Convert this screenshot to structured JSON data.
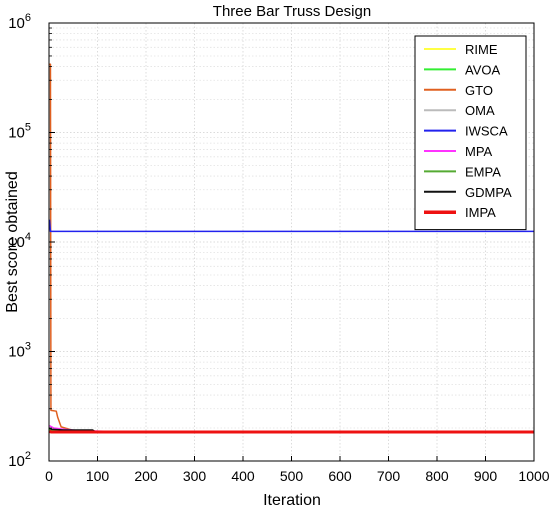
{
  "chart_data": {
    "type": "line",
    "title": "Three Bar Truss Design",
    "xlabel": "Iteration",
    "ylabel": "Best score obtained",
    "xlim": [
      0,
      1000
    ],
    "ylim": [
      100,
      1000000
    ],
    "yscale": "log",
    "grid": true,
    "legend_position": "top-right",
    "x_ticks": [
      "0",
      "100",
      "200",
      "300",
      "400",
      "500",
      "600",
      "700",
      "800",
      "900",
      "1000"
    ],
    "y_ticks": [
      {
        "base": "10",
        "exp": "2",
        "value": 100
      },
      {
        "base": "10",
        "exp": "3",
        "value": 1000
      },
      {
        "base": "10",
        "exp": "4",
        "value": 10000
      },
      {
        "base": "10",
        "exp": "5",
        "value": 100000
      },
      {
        "base": "10",
        "exp": "6",
        "value": 1000000
      }
    ],
    "series": [
      {
        "name": "RIME",
        "color": "#ffff44",
        "points": [
          [
            1,
            190
          ],
          [
            3,
            186
          ],
          [
            10,
            185
          ],
          [
            30,
            184
          ],
          [
            1000,
            184
          ]
        ]
      },
      {
        "name": "AVOA",
        "color": "#33ee33",
        "points": [
          [
            1,
            195
          ],
          [
            5,
            188
          ],
          [
            20,
            185
          ],
          [
            60,
            184
          ],
          [
            1000,
            184
          ]
        ]
      },
      {
        "name": "GTO",
        "color": "#e06020",
        "points": [
          [
            1,
            420000
          ],
          [
            3,
            420000
          ],
          [
            4,
            290
          ],
          [
            15,
            285
          ],
          [
            18,
            250
          ],
          [
            25,
            205
          ],
          [
            50,
            190
          ],
          [
            100,
            186
          ],
          [
            200,
            184
          ],
          [
            1000,
            184
          ]
        ]
      },
      {
        "name": "OMA",
        "color": "#bbbbbb",
        "points": [
          [
            1,
            200
          ],
          [
            10,
            192
          ],
          [
            40,
            188
          ],
          [
            150,
            185
          ],
          [
            1000,
            184
          ]
        ]
      },
      {
        "name": "IWSCA",
        "color": "#2222ee",
        "points": [
          [
            1,
            16000
          ],
          [
            3,
            12500
          ],
          [
            1000,
            12500
          ]
        ]
      },
      {
        "name": "MPA",
        "color": "#ff33ff",
        "points": [
          [
            1,
            210
          ],
          [
            10,
            200
          ],
          [
            30,
            195
          ],
          [
            60,
            190
          ],
          [
            130,
            186
          ],
          [
            1000,
            184
          ]
        ]
      },
      {
        "name": "EMPA",
        "color": "#55aa33",
        "points": [
          [
            1,
            200
          ],
          [
            5,
            190
          ],
          [
            40,
            186
          ],
          [
            1000,
            184
          ]
        ]
      },
      {
        "name": "GDMPA",
        "color": "#111111",
        "points": [
          [
            1,
            200
          ],
          [
            5,
            195
          ],
          [
            30,
            192
          ],
          [
            90,
            192
          ],
          [
            95,
            186
          ],
          [
            1000,
            184
          ]
        ]
      },
      {
        "name": "IMPA",
        "color": "#ee1111",
        "points": [
          [
            1,
            186
          ],
          [
            5,
            184
          ],
          [
            1000,
            184
          ]
        ]
      }
    ]
  }
}
